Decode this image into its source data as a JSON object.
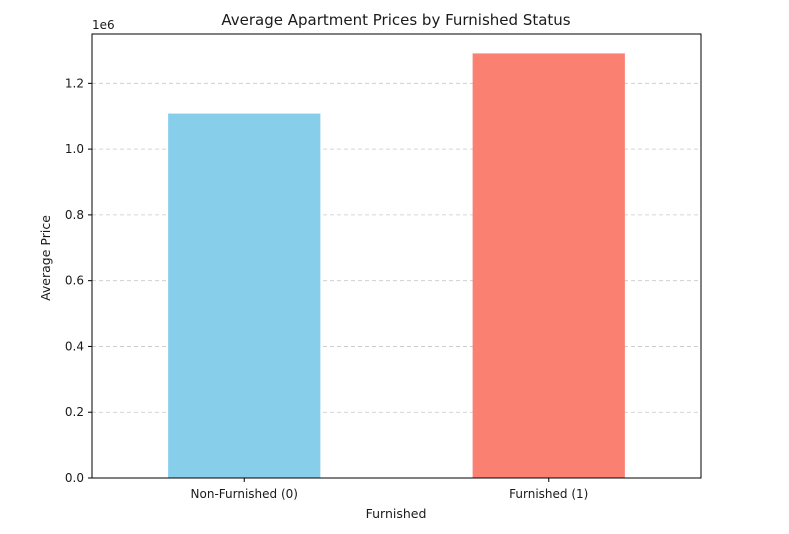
{
  "chart_data": {
    "type": "bar",
    "title": "Average Apartment Prices by Furnished Status",
    "xlabel": "Furnished",
    "ylabel": "Average Price",
    "y_offset_label": "1e6",
    "categories": [
      "Non-Furnished (0)",
      "Furnished (1)"
    ],
    "values": [
      1108000,
      1291000
    ],
    "colors": [
      "#87ceeb",
      "#fa8072"
    ],
    "ylim": [
      0,
      1350000
    ],
    "yticks": [
      0,
      200000,
      400000,
      600000,
      800000,
      1000000,
      1200000
    ],
    "ytick_labels": [
      "0.0",
      "0.2",
      "0.4",
      "0.6",
      "0.8",
      "1.0",
      "1.2"
    ],
    "grid": "y-dashed",
    "legend": "none"
  }
}
